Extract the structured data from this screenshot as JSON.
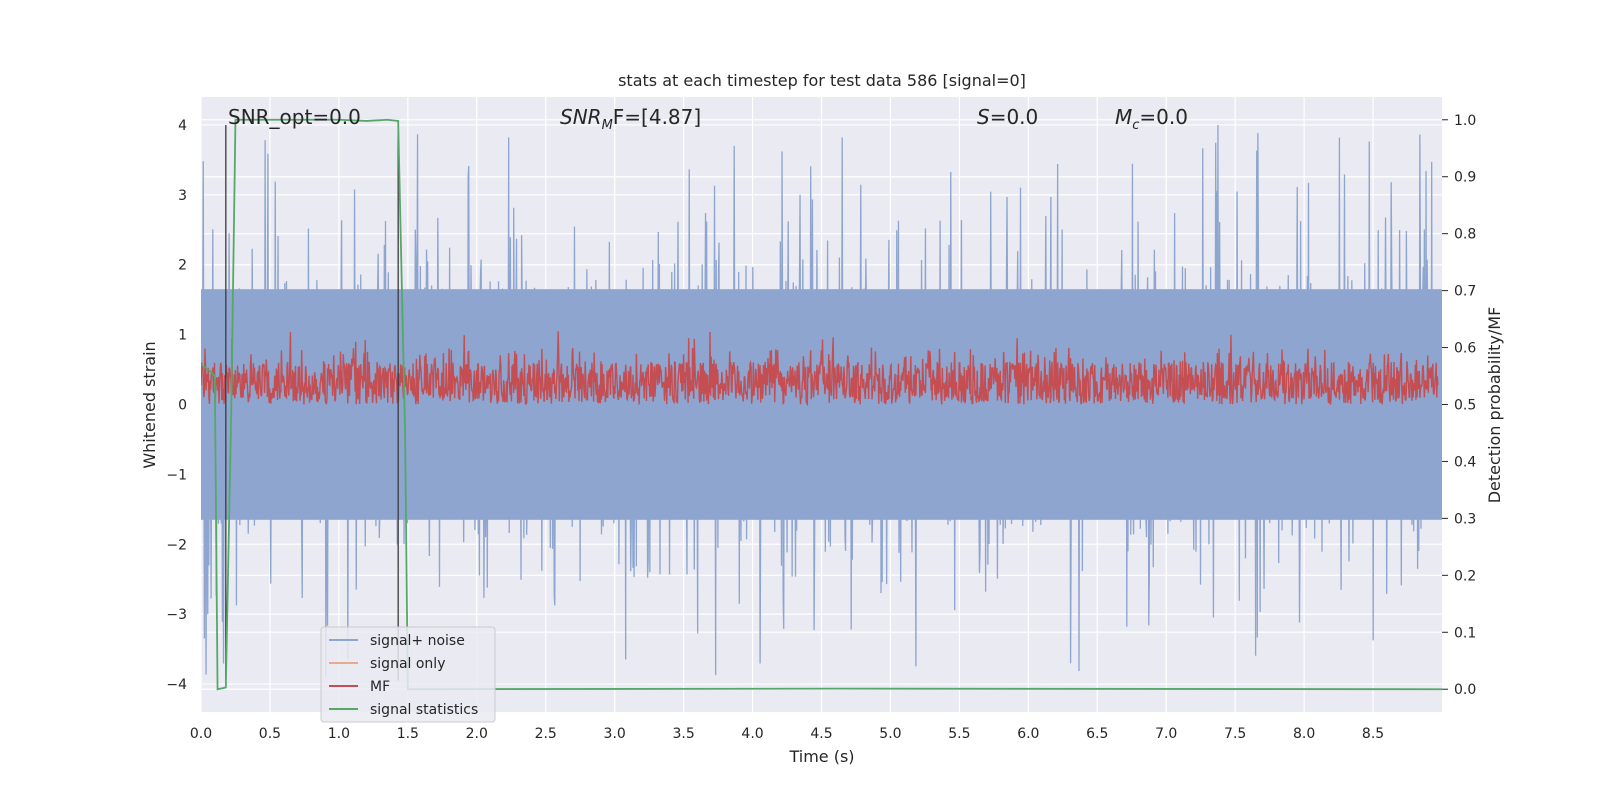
{
  "chart_data": {
    "type": "line",
    "title": "stats at each timestep for test data 586 [signal=0]",
    "xlabel": "Time (s)",
    "ylabel_left": "Whitened strain",
    "ylabel_right": "Detection probability/MF",
    "xlim": [
      0.0,
      9.0
    ],
    "ylim_left": [
      -4.4,
      4.4
    ],
    "ylim_right": [
      -0.04,
      1.04
    ],
    "x_ticks": [
      "0.0",
      "0.5",
      "1.0",
      "1.5",
      "2.0",
      "2.5",
      "3.0",
      "3.5",
      "4.0",
      "4.5",
      "5.0",
      "5.5",
      "6.0",
      "6.5",
      "7.0",
      "7.5",
      "8.0",
      "8.5"
    ],
    "y_ticks_left": [
      "4",
      "3",
      "2",
      "1",
      "0",
      "−1",
      "−2",
      "−3",
      "−4"
    ],
    "y_ticks_right": [
      "1.0",
      "0.9",
      "0.8",
      "0.7",
      "0.6",
      "0.5",
      "0.4",
      "0.3",
      "0.2",
      "0.1",
      "0.0"
    ],
    "annotations": {
      "snr_opt": "SNR_opt=0.0",
      "snr_mf_base": "SNR",
      "snr_mf_sub": "M",
      "snr_mf_rest": "F=[4.87]",
      "s_sym": "S",
      "s_val": "=0.0",
      "mc_sym": "M",
      "mc_sub": "c",
      "mc_val": "=0.0"
    },
    "vlines_x": [
      0.18,
      1.43
    ],
    "legend": {
      "position": "lower-left",
      "entries": [
        {
          "label": "signal+ noise",
          "color": "#8ea5cf"
        },
        {
          "label": "signal only",
          "color": "#e9a98b"
        },
        {
          "label": "MF",
          "color": "#c44e52"
        },
        {
          "label": "signal statistics",
          "color": "#55a868"
        }
      ]
    },
    "series": [
      {
        "name": "signal+ noise",
        "axis": "left",
        "color": "#8ea5cf",
        "envelope_upper": 1.65,
        "envelope_lower": -1.65,
        "peak_max": 4.0,
        "peak_min": -3.9
      },
      {
        "name": "signal only",
        "axis": "left",
        "color": "#e9a98b",
        "values_constant": 0.0
      },
      {
        "name": "MF",
        "axis": "right",
        "color": "#c44e52",
        "band": [
          0.5,
          0.6
        ],
        "peak_max": 0.63
      },
      {
        "name": "signal statistics",
        "axis": "right",
        "color": "#55a868",
        "x": [
          0.0,
          0.06,
          0.1,
          0.12,
          0.18,
          0.22,
          0.25,
          0.6,
          1.0,
          1.2,
          1.35,
          1.43,
          1.48,
          1.5,
          4.6,
          9.0
        ],
        "values": [
          0.57,
          0.56,
          0.55,
          0.0,
          0.003,
          0.5,
          1.0,
          1.0,
          1.0,
          0.998,
          1.0,
          0.998,
          0.45,
          0.0,
          0.001,
          0.0
        ]
      }
    ]
  }
}
